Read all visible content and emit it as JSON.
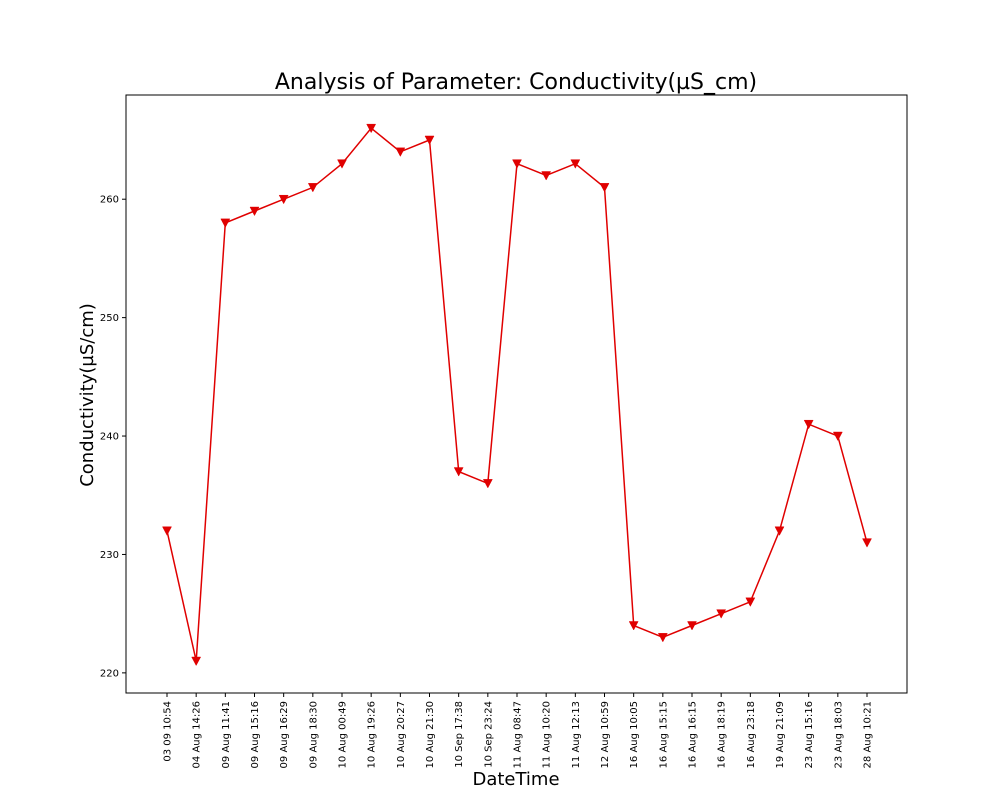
{
  "chart_data": {
    "type": "line",
    "title": "Analysis of Parameter: Conductivity(µS_cm)",
    "xlabel": "DateTime",
    "ylabel": "Conductivity(µS/cm)",
    "ylim": [
      218.3,
      268.8
    ],
    "yticks": [
      220,
      230,
      240,
      250,
      260
    ],
    "grid": false,
    "color": "#e00000",
    "marker": "triangle-down",
    "categories": [
      "03 09 10:54",
      "04 Aug 14:26",
      "09 Aug 11:41",
      "09 Aug 15:16",
      "09 Aug 16:29",
      "09 Aug 18:30",
      "10 Aug 00:49",
      "10 Aug 19:26",
      "10 Aug 20:27",
      "10 Aug 21:30",
      "10 Sep 17:38",
      "10 Sep 23:24",
      "11 Aug 08:47",
      "11 Aug 10:20",
      "11 Aug 12:13",
      "12 Aug 10:59",
      "16 Aug 10:05",
      "16 Aug 15:15",
      "16 Aug 16:15",
      "16 Aug 18:19",
      "16 Aug 23:18",
      "19 Aug 21:09",
      "23 Aug 15:16",
      "23 Aug 18:03",
      "28 Aug 10:21"
    ],
    "values": [
      232,
      221,
      258,
      259,
      260,
      261,
      263,
      266,
      264,
      265,
      237,
      236,
      263,
      262,
      263,
      261,
      224,
      223,
      224,
      225,
      226,
      232,
      241,
      240,
      231
    ]
  }
}
